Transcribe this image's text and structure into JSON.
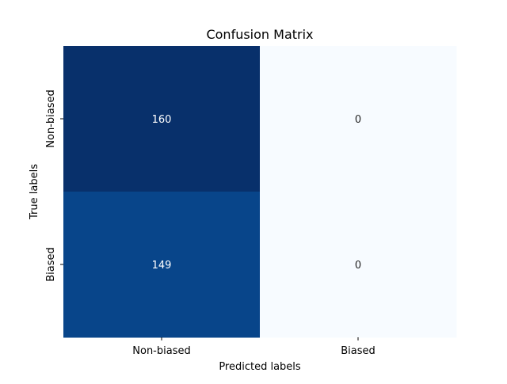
{
  "chart_data": {
    "type": "heatmap",
    "title": "Confusion Matrix",
    "xlabel": "Predicted labels",
    "ylabel": "True labels",
    "x_categories": [
      "Non-biased",
      "Biased"
    ],
    "y_categories": [
      "Non-biased",
      "Biased"
    ],
    "values": [
      [
        160,
        0
      ],
      [
        149,
        0
      ]
    ],
    "colormap": "Blues",
    "colorbar": false,
    "cell_colors": [
      [
        "#08306b",
        "#f7fbff"
      ],
      [
        "#08458a",
        "#f7fbff"
      ]
    ],
    "annotation_colors": [
      [
        "#ffffff",
        "#262626"
      ],
      [
        "#ffffff",
        "#262626"
      ]
    ]
  }
}
